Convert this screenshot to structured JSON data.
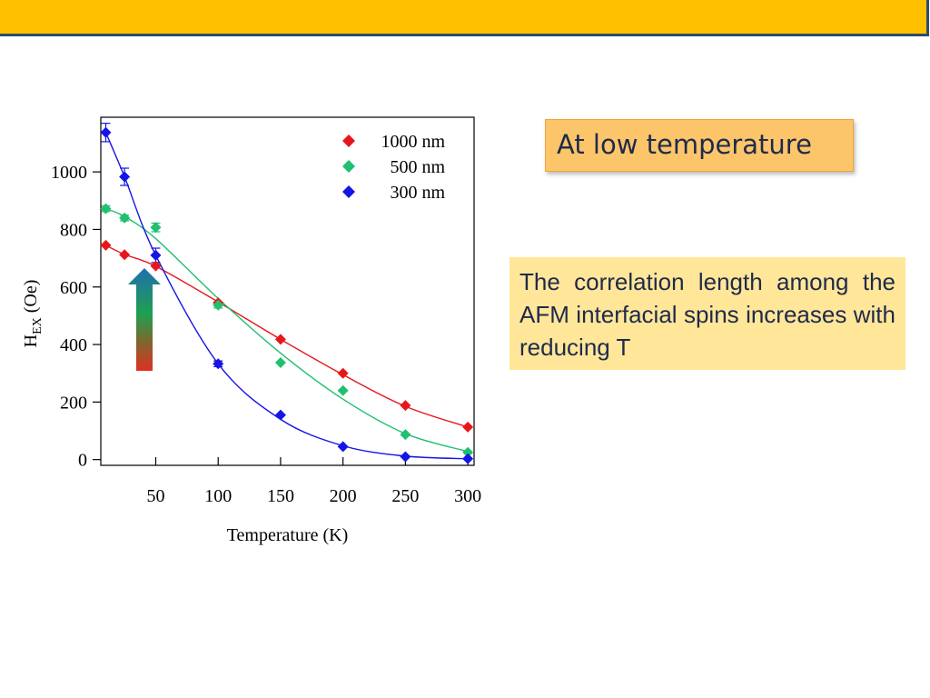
{
  "slide": {
    "callout_title": "At low temperature",
    "note_text": "The correlation length among the AFM interfacial spins increases with reducing T",
    "colors": {
      "header": "#ffc000",
      "callout": "#fcc56a",
      "note": "#ffe699",
      "arrow_top": "#1f6fb0",
      "arrow_mid": "#1fa050",
      "arrow_bottom": "#e03020"
    }
  },
  "chart_data": {
    "type": "scatter",
    "xlabel": "Temperature (K)",
    "ylabel_main": "H",
    "ylabel_sub": "EX",
    "ylabel_unit": " (Oe)",
    "xlim": [
      6,
      305
    ],
    "ylim": [
      -20,
      1190
    ],
    "xticks": [
      50,
      100,
      150,
      200,
      250,
      300
    ],
    "yticks": [
      0,
      200,
      400,
      600,
      800,
      1000
    ],
    "legend_position": "top-right",
    "series": [
      {
        "name": "1000 nm",
        "color": "#e8161b",
        "x": [
          10,
          25,
          50,
          100,
          150,
          200,
          250,
          300
        ],
        "y": [
          745,
          712,
          673,
          545,
          418,
          300,
          188,
          113
        ],
        "err": [
          0,
          0,
          0,
          0,
          0,
          0,
          0,
          0
        ],
        "fit": [
          745,
          713,
          672,
          548,
          418,
          295,
          185,
          113
        ]
      },
      {
        "name": "500 nm",
        "color": "#20c070",
        "x": [
          10,
          25,
          50,
          100,
          150,
          200,
          250,
          300
        ],
        "y": [
          872,
          840,
          807,
          537,
          337,
          240,
          87,
          25
        ],
        "err": [
          10,
          10,
          15,
          10,
          0,
          0,
          0,
          0
        ],
        "fit": [
          872,
          845,
          768,
          560,
          370,
          210,
          90,
          28
        ]
      },
      {
        "name": "300 nm",
        "color": "#1515e6",
        "x": [
          10,
          25,
          50,
          100,
          150,
          200,
          250,
          300
        ],
        "y": [
          1137,
          983,
          710,
          333,
          155,
          45,
          10,
          3
        ],
        "err": [
          32,
          30,
          25,
          10,
          0,
          0,
          0,
          0
        ],
        "fit": [
          1137,
          983,
          710,
          333,
          140,
          48,
          12,
          3
        ]
      }
    ]
  }
}
